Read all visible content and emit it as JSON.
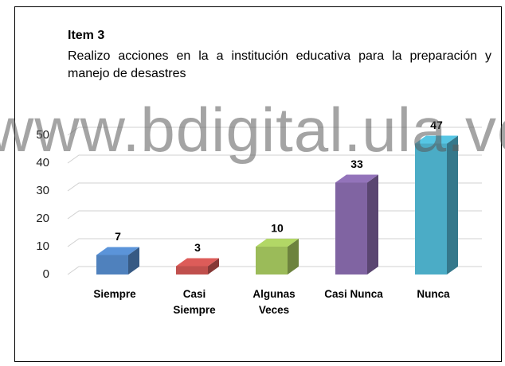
{
  "chart_data": {
    "type": "bar3d",
    "title": "Item 3",
    "subtitle": "Realizo acciones en la a institución educativa para la preparación y manejo de desastres",
    "watermark": "www.bdigital.ula.ve",
    "categories": [
      "Siempre",
      "Casi Siempre",
      "Algunas Veces",
      "Casi Nunca",
      "Nunca"
    ],
    "values": [
      7,
      3,
      10,
      33,
      47
    ],
    "colors": [
      "#4f81bd",
      "#c0504d",
      "#9bbb59",
      "#8064a2",
      "#4bacc6"
    ],
    "ylim": [
      0,
      50
    ],
    "yticks": [
      0,
      10,
      20,
      30,
      40,
      50
    ],
    "grid": true
  }
}
